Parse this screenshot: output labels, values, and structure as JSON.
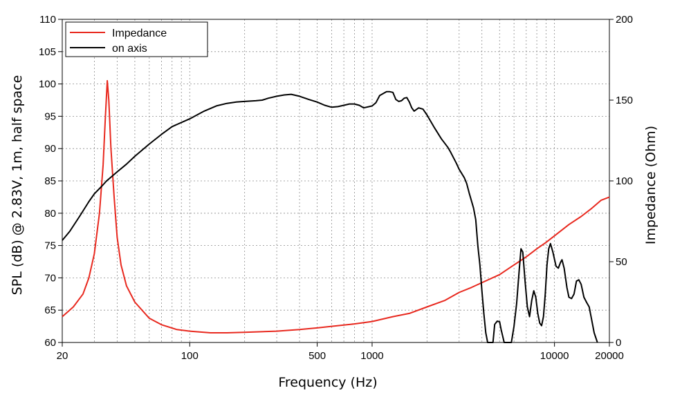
{
  "chart_data": {
    "type": "line",
    "xlabel": "Frequency (Hz)",
    "ylabel_left": "SPL (dB) @ 2.83V, 1m, half space",
    "ylabel_right": "Impedance (Ohm)",
    "x_scale": "log",
    "xlim": [
      20,
      20000
    ],
    "ylim_left": [
      60,
      110
    ],
    "ylim_right": [
      0,
      200
    ],
    "x_ticks": [
      20,
      100,
      500,
      1000,
      10000,
      20000
    ],
    "x_tick_labels": [
      "20",
      "100",
      "500",
      "1000",
      "10000",
      "20000"
    ],
    "y_ticks_left": [
      60,
      65,
      70,
      75,
      80,
      85,
      90,
      95,
      100,
      105,
      110
    ],
    "y_tick_labels_left": [
      "60",
      "65",
      "70",
      "75",
      "80",
      "85",
      "90",
      "95",
      "100",
      "105",
      "110"
    ],
    "y_ticks_right": [
      0,
      50,
      100,
      150,
      200
    ],
    "y_tick_labels_right": [
      "0",
      "50",
      "100",
      "150",
      "200"
    ],
    "grid": true,
    "legend_position": "top-left",
    "series": [
      {
        "name": "Impedance",
        "axis": "right",
        "color": "#e8281e",
        "points": [
          [
            20,
            16
          ],
          [
            23,
            22
          ],
          [
            26,
            30
          ],
          [
            28,
            40
          ],
          [
            30,
            55
          ],
          [
            32,
            80
          ],
          [
            33.5,
            110
          ],
          [
            34.5,
            140
          ],
          [
            35.3,
            162
          ],
          [
            36,
            150
          ],
          [
            37,
            120
          ],
          [
            38.5,
            90
          ],
          [
            40,
            65
          ],
          [
            42,
            48
          ],
          [
            45,
            35
          ],
          [
            50,
            25
          ],
          [
            60,
            15
          ],
          [
            70,
            11
          ],
          [
            85,
            8
          ],
          [
            100,
            7
          ],
          [
            130,
            6
          ],
          [
            160,
            6
          ],
          [
            200,
            6.3
          ],
          [
            300,
            7
          ],
          [
            400,
            8
          ],
          [
            500,
            9
          ],
          [
            600,
            10
          ],
          [
            800,
            11.5
          ],
          [
            1000,
            13
          ],
          [
            1300,
            16
          ],
          [
            1600,
            18
          ],
          [
            2000,
            22
          ],
          [
            2500,
            26
          ],
          [
            3000,
            31
          ],
          [
            3500,
            34
          ],
          [
            4000,
            37
          ],
          [
            5000,
            42
          ],
          [
            6000,
            48
          ],
          [
            7000,
            53
          ],
          [
            8000,
            58
          ],
          [
            9000,
            62
          ],
          [
            10000,
            66
          ],
          [
            12000,
            73
          ],
          [
            14000,
            78
          ],
          [
            16000,
            83
          ],
          [
            18000,
            88
          ],
          [
            20000,
            90
          ]
        ]
      },
      {
        "name": "on axis",
        "axis": "left",
        "color": "#000000",
        "points": [
          [
            20,
            75.8
          ],
          [
            22,
            77.2
          ],
          [
            25,
            79.6
          ],
          [
            28,
            81.8
          ],
          [
            30,
            83
          ],
          [
            33,
            84.2
          ],
          [
            35,
            85
          ],
          [
            40,
            86.4
          ],
          [
            45,
            87.6
          ],
          [
            50,
            88.8
          ],
          [
            60,
            90.7
          ],
          [
            70,
            92.2
          ],
          [
            80,
            93.4
          ],
          [
            100,
            94.6
          ],
          [
            120,
            95.8
          ],
          [
            140,
            96.6
          ],
          [
            160,
            97
          ],
          [
            180,
            97.2
          ],
          [
            200,
            97.3
          ],
          [
            230,
            97.4
          ],
          [
            250,
            97.5
          ],
          [
            270,
            97.8
          ],
          [
            300,
            98.1
          ],
          [
            330,
            98.3
          ],
          [
            360,
            98.4
          ],
          [
            400,
            98.1
          ],
          [
            450,
            97.6
          ],
          [
            500,
            97.2
          ],
          [
            550,
            96.7
          ],
          [
            600,
            96.4
          ],
          [
            650,
            96.5
          ],
          [
            700,
            96.7
          ],
          [
            750,
            96.9
          ],
          [
            800,
            96.9
          ],
          [
            850,
            96.7
          ],
          [
            900,
            96.3
          ],
          [
            1000,
            96.6
          ],
          [
            1050,
            97.1
          ],
          [
            1100,
            98.2
          ],
          [
            1200,
            98.8
          ],
          [
            1250,
            98.8
          ],
          [
            1300,
            98.7
          ],
          [
            1350,
            97.6
          ],
          [
            1400,
            97.3
          ],
          [
            1450,
            97.4
          ],
          [
            1500,
            97.8
          ],
          [
            1550,
            97.9
          ],
          [
            1600,
            97.2
          ],
          [
            1650,
            96.3
          ],
          [
            1700,
            95.8
          ],
          [
            1800,
            96.3
          ],
          [
            1900,
            96.1
          ],
          [
            2000,
            95.2
          ],
          [
            2200,
            93.2
          ],
          [
            2400,
            91.5
          ],
          [
            2600,
            90.2
          ],
          [
            2700,
            89.4
          ],
          [
            2900,
            87.7
          ],
          [
            3000,
            86.8
          ],
          [
            3200,
            85.5
          ],
          [
            3300,
            84.6
          ],
          [
            3400,
            83.2
          ],
          [
            3600,
            80.8
          ],
          [
            3700,
            79.0
          ],
          [
            3800,
            75.0
          ],
          [
            3900,
            72.0
          ],
          [
            4000,
            68.0
          ],
          [
            4100,
            64.5
          ],
          [
            4200,
            61.5
          ],
          [
            4300,
            60.0
          ],
          [
            4600,
            60.0
          ],
          [
            4700,
            62.8
          ],
          [
            4850,
            63.3
          ],
          [
            5000,
            63.2
          ],
          [
            5100,
            62.0
          ],
          [
            5300,
            60.0
          ],
          [
            5800,
            60.0
          ],
          [
            6000,
            62.5
          ],
          [
            6200,
            66.0
          ],
          [
            6400,
            71.0
          ],
          [
            6550,
            74.5
          ],
          [
            6700,
            74.0
          ],
          [
            6900,
            69.5
          ],
          [
            7100,
            65.5
          ],
          [
            7300,
            64.0
          ],
          [
            7500,
            66.5
          ],
          [
            7700,
            68.0
          ],
          [
            7900,
            67.0
          ],
          [
            8100,
            64.5
          ],
          [
            8300,
            63.0
          ],
          [
            8500,
            62.6
          ],
          [
            8700,
            64.0
          ],
          [
            8900,
            67.5
          ],
          [
            9100,
            72.0
          ],
          [
            9300,
            74.5
          ],
          [
            9500,
            75.3
          ],
          [
            9800,
            74.0
          ],
          [
            10200,
            71.8
          ],
          [
            10500,
            71.5
          ],
          [
            10800,
            72.4
          ],
          [
            11000,
            72.8
          ],
          [
            11300,
            71.5
          ],
          [
            11700,
            68.5
          ],
          [
            12000,
            67.0
          ],
          [
            12400,
            66.8
          ],
          [
            12800,
            67.5
          ],
          [
            13200,
            69.5
          ],
          [
            13600,
            69.7
          ],
          [
            14000,
            69.0
          ],
          [
            14500,
            67.0
          ],
          [
            15000,
            66.2
          ],
          [
            15500,
            65.5
          ],
          [
            16000,
            63.5
          ],
          [
            16500,
            61.5
          ],
          [
            17200,
            60.0
          ]
        ]
      }
    ]
  }
}
